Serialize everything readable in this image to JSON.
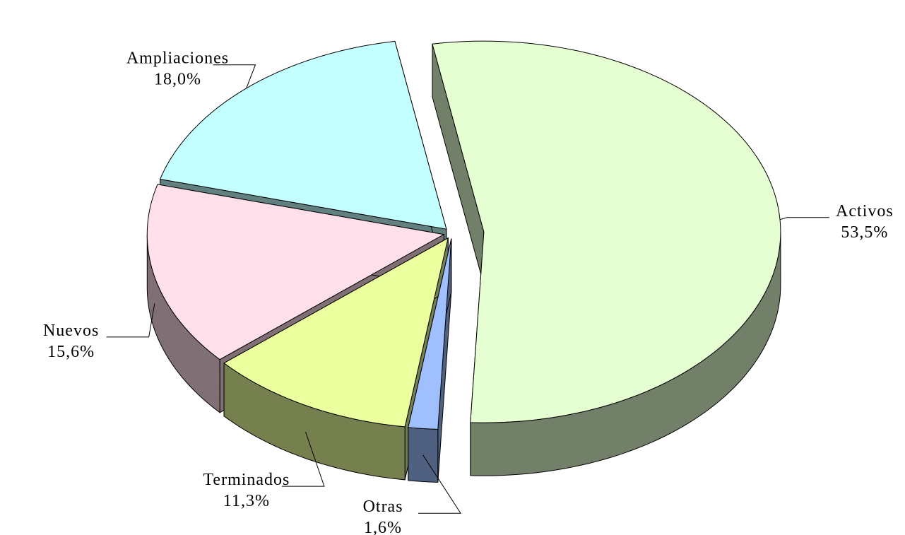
{
  "chart_data": {
    "type": "pie",
    "three_d": true,
    "categories": [
      "Activos",
      "Otras",
      "Terminados",
      "Nuevos",
      "Ampliaciones"
    ],
    "values": [
      53.5,
      1.6,
      11.3,
      15.6,
      18.0
    ],
    "value_labels": [
      "53,5%",
      "1,6%",
      "11,3%",
      "15,6%",
      "18,0%"
    ],
    "colors": [
      "#e6ffd2",
      "#9fbfff",
      "#ecff9e",
      "#ffe0ea",
      "#c4ffff"
    ]
  }
}
